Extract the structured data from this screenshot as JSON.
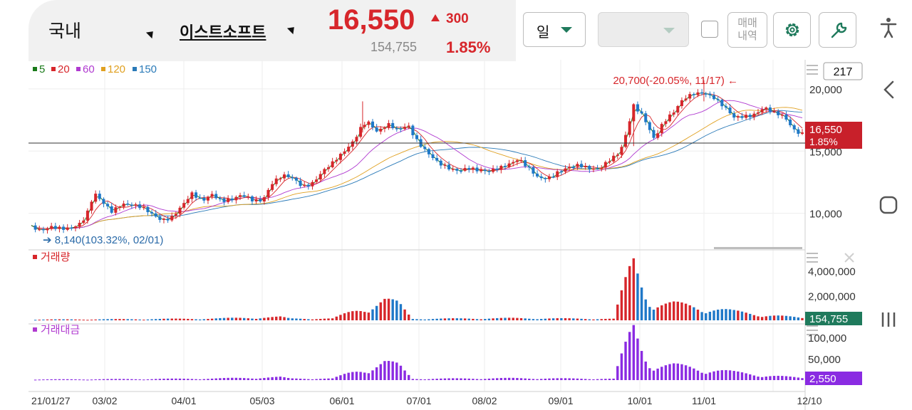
{
  "header": {
    "market": "국내",
    "stock_name": "이스트소프트",
    "price": "16,550",
    "change": "300",
    "volume": "154,755",
    "change_pct": "1.85%"
  },
  "toolbar": {
    "period_select": "일",
    "second_select": "",
    "trade_button_line1": "매매",
    "trade_button_line2": "내역",
    "settings_icon": "gear-icon",
    "tools_icon": "wrench-icon"
  },
  "colors": {
    "up": "#d7262b",
    "down": "#1f78c8",
    "ma5": "#1a7a1a",
    "ma20": "#d7262b",
    "ma60": "#b03ad0",
    "ma120": "#e0a020",
    "ma150": "#2a7ab8",
    "volume_badge": "#1f7a5c",
    "amount_badge": "#8a2be2"
  },
  "chart_data": {
    "type": "candlestick",
    "visible_candles": "217",
    "legend": [
      {
        "label": "5",
        "color": "#1a7a1a"
      },
      {
        "label": "20",
        "color": "#d7262b"
      },
      {
        "label": "60",
        "color": "#b03ad0"
      },
      {
        "label": "120",
        "color": "#e0a020"
      },
      {
        "label": "150",
        "color": "#2a7ab8"
      }
    ],
    "price_axis": {
      "ticks": [
        "20,000",
        "15,000",
        "10,000"
      ],
      "range": [
        7000,
        22000
      ]
    },
    "current_price_label": "16,550",
    "current_pct_label": "1.85%",
    "high_annotation": "20,700(-20.05%, 11/17)",
    "low_annotation": "8,140(103.32%, 02/01)",
    "volume_panel": {
      "title": "거래량",
      "ticks": [
        "4,000,000",
        "2,000,000"
      ],
      "current": "154,755"
    },
    "amount_panel": {
      "title": "거래대금",
      "ticks": [
        "100,000",
        "50,000"
      ],
      "current": "2,550"
    },
    "x_labels": [
      "21/01/27",
      "03/02",
      "04/01",
      "05/03",
      "06/01",
      "07/01",
      "08/02",
      "09/01",
      "10/01",
      "11/01",
      "12/10"
    ],
    "price_series": [
      [
        0,
        8900
      ],
      [
        10,
        8400
      ],
      [
        20,
        8800
      ],
      [
        30,
        8900
      ],
      [
        40,
        9000
      ],
      [
        50,
        9200
      ],
      [
        58,
        10200
      ],
      [
        62,
        11500
      ],
      [
        70,
        10900
      ],
      [
        80,
        10300
      ],
      [
        90,
        10900
      ],
      [
        100,
        10600
      ],
      [
        110,
        10300
      ],
      [
        120,
        9900
      ],
      [
        130,
        9600
      ],
      [
        140,
        9800
      ],
      [
        150,
        10500
      ],
      [
        160,
        11400
      ],
      [
        170,
        11000
      ],
      [
        180,
        11700
      ],
      [
        190,
        11100
      ],
      [
        200,
        11000
      ],
      [
        210,
        11300
      ],
      [
        220,
        11100
      ],
      [
        230,
        11200
      ],
      [
        240,
        12500
      ],
      [
        250,
        12900
      ],
      [
        260,
        12700
      ],
      [
        270,
        12200
      ],
      [
        280,
        12600
      ],
      [
        290,
        13400
      ],
      [
        300,
        13900
      ],
      [
        310,
        14700
      ],
      [
        320,
        15800
      ],
      [
        330,
        17300
      ],
      [
        335,
        17500
      ],
      [
        345,
        16400
      ],
      [
        355,
        17000
      ],
      [
        365,
        16700
      ],
      [
        375,
        17300
      ],
      [
        385,
        15800
      ],
      [
        395,
        14700
      ],
      [
        405,
        13900
      ],
      [
        415,
        13700
      ],
      [
        425,
        13600
      ],
      [
        435,
        13700
      ],
      [
        445,
        13300
      ],
      [
        455,
        13200
      ],
      [
        465,
        13700
      ],
      [
        475,
        14100
      ],
      [
        485,
        14400
      ],
      [
        495,
        13500
      ],
      [
        505,
        12700
      ],
      [
        515,
        12900
      ],
      [
        525,
        13500
      ],
      [
        535,
        13700
      ],
      [
        545,
        13700
      ],
      [
        555,
        13500
      ],
      [
        565,
        13700
      ],
      [
        575,
        14400
      ],
      [
        585,
        14800
      ],
      [
        590,
        15500
      ],
      [
        600,
        18500
      ],
      [
        610,
        17800
      ],
      [
        620,
        16200
      ],
      [
        630,
        17400
      ],
      [
        640,
        18000
      ],
      [
        650,
        19100
      ],
      [
        660,
        19700
      ],
      [
        670,
        19900
      ],
      [
        680,
        19300
      ],
      [
        690,
        18400
      ],
      [
        700,
        17600
      ],
      [
        710,
        17900
      ],
      [
        720,
        18100
      ],
      [
        730,
        18500
      ],
      [
        740,
        17900
      ],
      [
        750,
        17700
      ],
      [
        760,
        16800
      ],
      [
        768,
        16550
      ]
    ],
    "volume_series": [
      [
        0,
        50
      ],
      [
        100,
        80
      ],
      [
        180,
        120
      ],
      [
        248,
        230
      ],
      [
        258,
        120
      ],
      [
        300,
        120
      ],
      [
        352,
        1400
      ],
      [
        366,
        1100
      ],
      [
        380,
        100
      ],
      [
        480,
        150
      ],
      [
        580,
        100
      ],
      [
        600,
        4200
      ],
      [
        620,
        1050
      ],
      [
        640,
        1100
      ],
      [
        660,
        1000
      ],
      [
        700,
        600
      ],
      [
        768,
        154
      ]
    ]
  }
}
